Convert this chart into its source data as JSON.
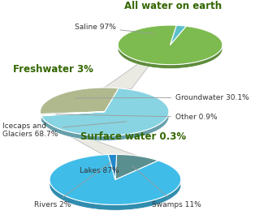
{
  "pie1_title": "All water on earth",
  "pie1_sizes": [
    97,
    3
  ],
  "pie1_colors": [
    "#7dbb50",
    "#5bbfca"
  ],
  "pie1_startangle": 83,
  "pie2_title": "Freshwater 3%",
  "pie2_sizes": [
    68.7,
    30.1,
    0.9,
    0.3
  ],
  "pie2_colors": [
    "#88d4e2",
    "#b0b98e",
    "#c8cba5",
    "#5bbfca"
  ],
  "pie2_startangle": 190,
  "pie3_title": "Surface water 0.3%",
  "pie3_sizes": [
    87,
    11,
    2
  ],
  "pie3_colors": [
    "#40bce8",
    "#5a8f90",
    "#2288cc"
  ],
  "pie3_startangle": 96,
  "title_color": "#336600",
  "label_color": "#333333",
  "arrow_color": "#999999",
  "connector_face": "#e8e8e0",
  "connector_edge": "#aaaaaa",
  "bg_color": "#ffffff",
  "edge_color": "#ffffff",
  "title_fontsize": 8.5,
  "label_fontsize": 6.5,
  "edge_lw": 0.8
}
